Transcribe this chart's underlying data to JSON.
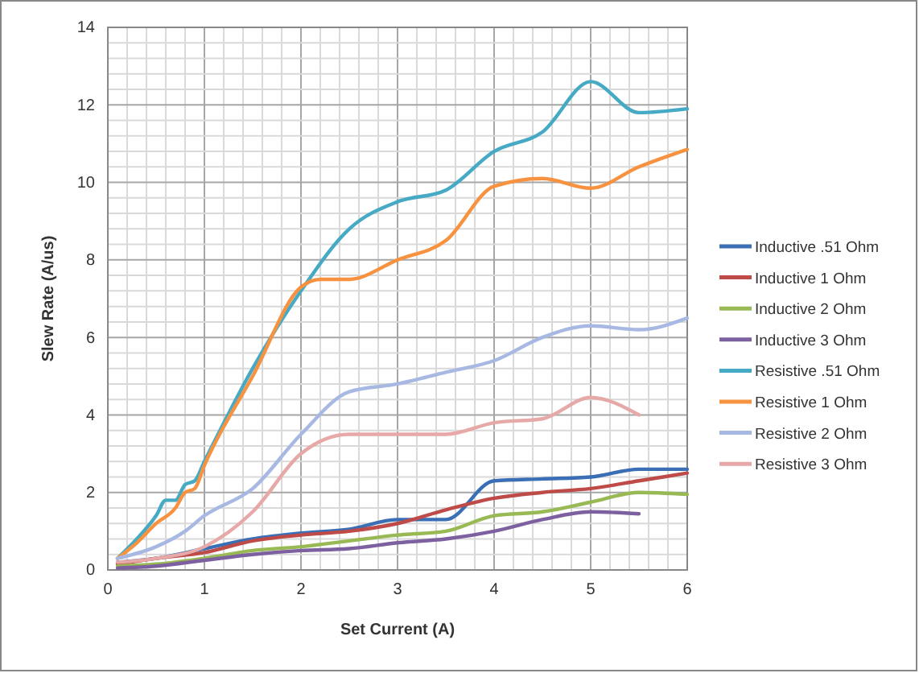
{
  "chart_data": {
    "type": "line",
    "xlabel": "Set Current (A)",
    "ylabel": "Slew Rate (A/us)",
    "xlim": [
      0,
      6
    ],
    "ylim": [
      0,
      14
    ],
    "xticks": [
      0,
      {
        "value": 0.2,
        "label": null
      },
      {
        "value": 0.4,
        "label": null
      },
      {
        "value": 0.6,
        "label": null
      },
      {
        "value": 0.8,
        "label": null
      },
      1,
      {
        "value": 1.2,
        "label": null
      },
      {
        "value": 1.4,
        "label": null
      },
      {
        "value": 1.6,
        "label": null
      },
      {
        "value": 1.8,
        "label": null
      },
      2,
      {
        "value": 2.2,
        "label": null
      },
      {
        "value": 2.4,
        "label": null
      },
      {
        "value": 2.6,
        "label": null
      },
      {
        "value": 2.8,
        "label": null
      },
      3,
      {
        "value": 3.2,
        "label": null
      },
      {
        "value": 3.4,
        "label": null
      },
      {
        "value": 3.6,
        "label": null
      },
      {
        "value": 3.8,
        "label": null
      },
      4,
      {
        "value": 4.2,
        "label": null
      },
      {
        "value": 4.4,
        "label": null
      },
      {
        "value": 4.6,
        "label": null
      },
      {
        "value": 4.8,
        "label": null
      },
      5,
      {
        "value": 5.2,
        "label": null
      },
      {
        "value": 5.4,
        "label": null
      },
      {
        "value": 5.6,
        "label": null
      },
      {
        "value": 5.8,
        "label": null
      },
      6
    ],
    "yticks": [
      0,
      {
        "value": 0.4,
        "label": null
      },
      {
        "value": 0.8,
        "label": null
      },
      {
        "value": 1.2,
        "label": null
      },
      {
        "value": 1.6,
        "label": null
      },
      2,
      {
        "value": 2.4,
        "label": null
      },
      {
        "value": 2.8,
        "label": null
      },
      {
        "value": 3.2,
        "label": null
      },
      {
        "value": 3.6,
        "label": null
      },
      4,
      {
        "value": 4.4,
        "label": null
      },
      {
        "value": 4.8,
        "label": null
      },
      {
        "value": 5.2,
        "label": null
      },
      {
        "value": 5.6,
        "label": null
      },
      6,
      {
        "value": 6.4,
        "label": null
      },
      {
        "value": 6.8,
        "label": null
      },
      {
        "value": 7.2,
        "label": null
      },
      {
        "value": 7.6,
        "label": null
      },
      8,
      {
        "value": 8.4,
        "label": null
      },
      {
        "value": 8.8,
        "label": null
      },
      {
        "value": 9.2,
        "label": null
      },
      {
        "value": 9.6,
        "label": null
      },
      10,
      {
        "value": 10.4,
        "label": null
      },
      {
        "value": 10.8,
        "label": null
      },
      {
        "value": 11.2,
        "label": null
      },
      {
        "value": 11.6,
        "label": null
      },
      12,
      {
        "value": 12.4,
        "label": null
      },
      {
        "value": 12.8,
        "label": null
      },
      {
        "value": 13.2,
        "label": null
      },
      {
        "value": 13.6,
        "label": null
      },
      14
    ],
    "grid": true,
    "legend": "right",
    "marker": "none",
    "line_style": "solid",
    "series": [
      {
        "name": "Inductive .51 Ohm",
        "color": "#3a6fb5",
        "x": [
          0.1,
          0.5,
          1,
          1.5,
          2,
          2.5,
          3,
          3.5,
          4,
          4.5,
          5,
          5.5,
          6
        ],
        "values": [
          0.2,
          0.3,
          0.55,
          0.8,
          0.95,
          1.05,
          1.3,
          1.3,
          2.3,
          2.35,
          2.4,
          2.6,
          2.6
        ]
      },
      {
        "name": "Inductive 1 Ohm",
        "color": "#be4b48",
        "x": [
          0.1,
          0.5,
          1,
          1.5,
          2,
          2.5,
          3,
          3.5,
          4,
          4.5,
          5,
          5.5,
          6
        ],
        "values": [
          0.15,
          0.3,
          0.45,
          0.75,
          0.9,
          1.0,
          1.2,
          1.55,
          1.85,
          2.0,
          2.1,
          2.3,
          2.5
        ]
      },
      {
        "name": "Inductive 2 Ohm",
        "color": "#98b954",
        "x": [
          0.1,
          0.5,
          1,
          1.5,
          2,
          2.5,
          3,
          3.5,
          4,
          4.5,
          5,
          5.5,
          6
        ],
        "values": [
          0.1,
          0.15,
          0.3,
          0.5,
          0.6,
          0.75,
          0.9,
          1.0,
          1.4,
          1.5,
          1.75,
          2.0,
          1.95
        ]
      },
      {
        "name": "Inductive 3 Ohm",
        "color": "#7d60a0",
        "x": [
          0.1,
          0.5,
          1,
          1.5,
          2,
          2.5,
          3,
          3.5,
          4,
          4.5,
          5,
          5.5
        ],
        "values": [
          0.05,
          0.1,
          0.25,
          0.4,
          0.5,
          0.55,
          0.7,
          0.8,
          1.0,
          1.3,
          1.5,
          1.45
        ]
      },
      {
        "name": "Resistive .51 Ohm",
        "color": "#46aac5",
        "x": [
          0.1,
          0.3,
          0.5,
          0.6,
          0.7,
          0.8,
          0.9,
          1,
          1.5,
          2,
          2.5,
          3,
          3.5,
          4,
          4.5,
          5,
          5.5,
          6
        ],
        "values": [
          0.3,
          0.8,
          1.4,
          1.8,
          1.8,
          2.2,
          2.3,
          2.8,
          5.2,
          7.2,
          8.8,
          9.5,
          9.8,
          10.8,
          11.3,
          12.6,
          11.8,
          11.9
        ]
      },
      {
        "name": "Resistive 1 Ohm",
        "color": "#f69240",
        "x": [
          0.1,
          0.3,
          0.5,
          0.7,
          0.8,
          0.9,
          1,
          1.5,
          2,
          2.2,
          2.5,
          3,
          3.5,
          4,
          4.5,
          5,
          5.5,
          6
        ],
        "values": [
          0.3,
          0.7,
          1.2,
          1.6,
          2.0,
          2.1,
          2.7,
          5.0,
          7.3,
          7.5,
          7.5,
          8.0,
          8.5,
          9.9,
          10.1,
          9.85,
          10.4,
          10.85
        ]
      },
      {
        "name": "Resistive 2 Ohm",
        "color": "#a7b9e3",
        "x": [
          0.1,
          0.5,
          0.8,
          1,
          1.5,
          2,
          2.5,
          3,
          3.5,
          4,
          4.5,
          5,
          5.5,
          6
        ],
        "values": [
          0.3,
          0.6,
          1.0,
          1.4,
          2.1,
          3.5,
          4.6,
          4.8,
          5.1,
          5.4,
          6.0,
          6.3,
          6.2,
          6.5
        ]
      },
      {
        "name": "Resistive 3 Ohm",
        "color": "#e6a9a7",
        "x": [
          0.1,
          0.5,
          1,
          1.5,
          2,
          2.5,
          3,
          3.5,
          4,
          4.5,
          5,
          5.5
        ],
        "values": [
          0.2,
          0.3,
          0.6,
          1.5,
          3.0,
          3.5,
          3.5,
          3.5,
          3.8,
          3.9,
          4.45,
          4.0
        ]
      }
    ]
  }
}
